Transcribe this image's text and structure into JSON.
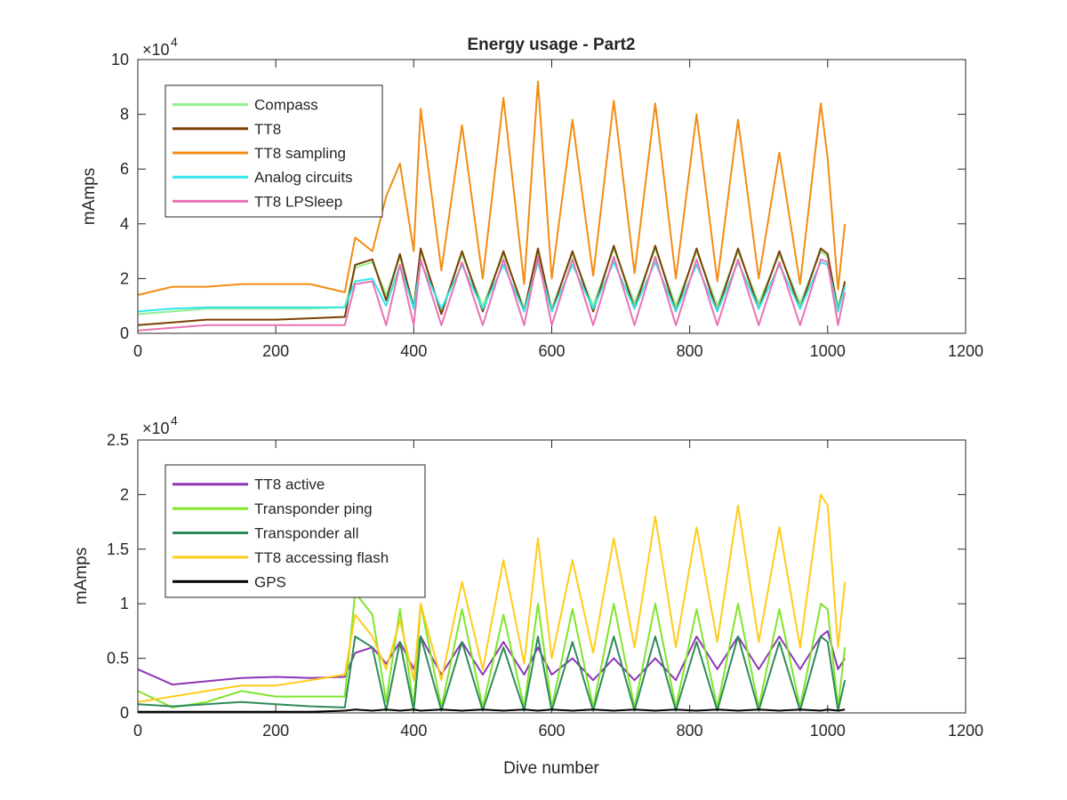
{
  "figure": {
    "xlabel": "Dive number"
  },
  "chart_data": [
    {
      "type": "line",
      "title": "Energy usage - Part2",
      "xlabel": "",
      "ylabel": "mAmps",
      "exponent_label": "×10",
      "exponent_power": "4",
      "xlim": [
        0,
        1200
      ],
      "ylim": [
        0,
        100000
      ],
      "xticks": [
        0,
        200,
        400,
        600,
        800,
        1000,
        1200
      ],
      "yticks": [
        0,
        20000,
        40000,
        60000,
        80000,
        100000
      ],
      "ytick_labels": [
        "0",
        "2",
        "4",
        "6",
        "8",
        "10"
      ],
      "grid": false,
      "legend_position": "top-left",
      "x": [
        0,
        50,
        100,
        150,
        200,
        250,
        300,
        315,
        340,
        360,
        380,
        400,
        410,
        440,
        470,
        500,
        530,
        560,
        580,
        600,
        630,
        660,
        690,
        720,
        750,
        780,
        810,
        840,
        870,
        900,
        930,
        960,
        990,
        1000,
        1015,
        1025
      ],
      "series": [
        {
          "name": "Compass",
          "color": "#90EE90",
          "values": [
            7000,
            8000,
            9000,
            9000,
            9000,
            9000,
            9500,
            24000,
            26000,
            14000,
            28000,
            10000,
            30000,
            8000,
            29000,
            10000,
            29000,
            9000,
            30000,
            9000,
            29000,
            10000,
            31000,
            11000,
            31000,
            10000,
            30000,
            10000,
            30000,
            11000,
            29000,
            11000,
            30000,
            28000,
            10000,
            18000
          ]
        },
        {
          "name": "TT8",
          "color": "#7B3F00",
          "values": [
            3000,
            4000,
            5000,
            5000,
            5000,
            5500,
            6000,
            25000,
            27000,
            12000,
            29000,
            9000,
            31000,
            7000,
            30000,
            8000,
            30000,
            8000,
            31000,
            8000,
            30000,
            8000,
            32000,
            9000,
            32000,
            8000,
            31000,
            8000,
            31000,
            9000,
            30000,
            9000,
            31000,
            29000,
            8000,
            19000
          ]
        },
        {
          "name": "TT8 sampling",
          "color": "#F28C12",
          "values": [
            14000,
            17000,
            17000,
            18000,
            18000,
            18000,
            15000,
            35000,
            30000,
            50000,
            62000,
            30000,
            82000,
            23000,
            76000,
            20000,
            86000,
            18000,
            92000,
            20000,
            78000,
            21000,
            85000,
            22000,
            84000,
            20000,
            80000,
            19000,
            78000,
            20000,
            66000,
            18000,
            84000,
            64000,
            16000,
            40000
          ]
        },
        {
          "name": "Analog circuits",
          "color": "#33E5EC",
          "values": [
            8000,
            9000,
            9500,
            9500,
            9500,
            9500,
            9500,
            19000,
            20000,
            10000,
            25000,
            9000,
            26000,
            9000,
            25000,
            9000,
            25000,
            8000,
            26000,
            8000,
            25000,
            9000,
            26000,
            9000,
            26000,
            8000,
            25000,
            8000,
            26000,
            9000,
            25000,
            9000,
            26000,
            25000,
            8000,
            17000
          ]
        },
        {
          "name": "TT8 LPSleep",
          "color": "#E873B5",
          "values": [
            1000,
            2000,
            3000,
            3000,
            3000,
            3000,
            3000,
            18000,
            19000,
            3000,
            25000,
            3000,
            27000,
            3000,
            26000,
            3000,
            27000,
            3000,
            28000,
            3000,
            27000,
            3000,
            28000,
            3000,
            28000,
            3000,
            27000,
            3000,
            27000,
            3000,
            26000,
            3000,
            27000,
            26000,
            3000,
            15000
          ]
        }
      ]
    },
    {
      "type": "line",
      "title": "",
      "xlabel": "Dive number",
      "ylabel": "mAmps",
      "exponent_label": "×10",
      "exponent_power": "4",
      "xlim": [
        0,
        1200
      ],
      "ylim": [
        0,
        25000
      ],
      "xticks": [
        0,
        200,
        400,
        600,
        800,
        1000,
        1200
      ],
      "yticks": [
        0,
        5000,
        10000,
        15000,
        20000,
        25000
      ],
      "ytick_labels": [
        "0",
        "0.5",
        "1",
        "1.5",
        "2",
        "2.5"
      ],
      "grid": false,
      "legend_position": "top-left",
      "x": [
        0,
        50,
        100,
        150,
        200,
        250,
        300,
        315,
        340,
        360,
        380,
        400,
        410,
        440,
        470,
        500,
        530,
        560,
        580,
        600,
        630,
        660,
        690,
        720,
        750,
        780,
        810,
        840,
        870,
        900,
        930,
        960,
        990,
        1000,
        1015,
        1025
      ],
      "series": [
        {
          "name": "TT8 active",
          "color": "#8E35B8",
          "values": [
            4000,
            2600,
            2900,
            3200,
            3300,
            3200,
            3300,
            5500,
            6000,
            4500,
            6500,
            4000,
            7000,
            3500,
            6500,
            3500,
            6500,
            3500,
            6000,
            3500,
            5000,
            3000,
            5000,
            3000,
            5000,
            3000,
            7000,
            4000,
            7000,
            4000,
            7000,
            4000,
            7000,
            7500,
            4000,
            5000
          ]
        },
        {
          "name": "Transponder ping",
          "color": "#7FE52B",
          "values": [
            2000,
            500,
            1000,
            2000,
            1500,
            1500,
            1500,
            11000,
            9000,
            1000,
            9500,
            500,
            10000,
            500,
            9500,
            500,
            9000,
            500,
            10000,
            500,
            9500,
            500,
            10000,
            500,
            10000,
            500,
            9500,
            500,
            10000,
            500,
            9500,
            500,
            10000,
            9500,
            500,
            6000
          ]
        },
        {
          "name": "Transponder all",
          "color": "#2E8B57",
          "values": [
            800,
            600,
            800,
            1000,
            800,
            600,
            500,
            7000,
            6000,
            200,
            6500,
            200,
            7000,
            200,
            6500,
            200,
            6000,
            200,
            7000,
            200,
            6500,
            200,
            7000,
            200,
            7000,
            200,
            6500,
            200,
            7000,
            200,
            6500,
            200,
            7000,
            6500,
            200,
            3000
          ]
        },
        {
          "name": "TT8 accessing flash",
          "color": "#FFCC1A",
          "values": [
            1000,
            1500,
            2000,
            2500,
            2500,
            3000,
            3500,
            9000,
            7000,
            4000,
            8500,
            3000,
            10000,
            3000,
            12000,
            4000,
            14000,
            4500,
            16000,
            5000,
            14000,
            5500,
            16000,
            6000,
            18000,
            6000,
            17000,
            6500,
            19000,
            6500,
            17000,
            6000,
            20000,
            19000,
            6000,
            12000
          ]
        },
        {
          "name": "GPS",
          "color": "#000000",
          "values": [
            100,
            100,
            100,
            100,
            100,
            100,
            200,
            300,
            200,
            300,
            200,
            300,
            200,
            300,
            200,
            300,
            200,
            300,
            200,
            300,
            200,
            300,
            200,
            300,
            200,
            300,
            200,
            300,
            200,
            300,
            200,
            300,
            200,
            300,
            200,
            300
          ]
        }
      ]
    }
  ]
}
